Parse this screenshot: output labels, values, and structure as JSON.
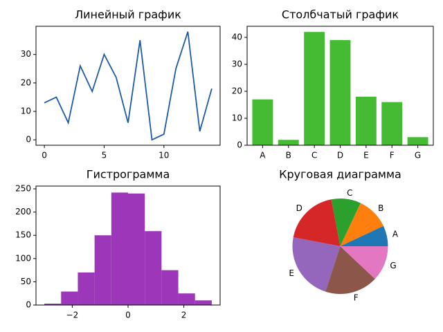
{
  "chart_data": [
    {
      "type": "line",
      "title": "Линейный график",
      "x": [
        0,
        1,
        2,
        3,
        4,
        5,
        6,
        7,
        8,
        9,
        10,
        11,
        12,
        13,
        14
      ],
      "values": [
        13,
        15,
        6,
        26,
        17,
        30,
        22,
        6,
        35,
        0,
        2,
        25,
        38,
        3,
        18
      ],
      "color": "#1c5aa8",
      "xlim": [
        -0.7,
        14.7
      ],
      "ylim": [
        -1.9,
        39.9
      ],
      "xticks": [
        0,
        5,
        10
      ],
      "yticks": [
        0,
        10,
        20,
        30
      ]
    },
    {
      "type": "bar",
      "title": "Столбчатый график",
      "categories": [
        "A",
        "B",
        "C",
        "D",
        "E",
        "F",
        "G"
      ],
      "values": [
        17,
        2,
        42,
        39,
        18,
        16,
        3
      ],
      "color": "#44bb33",
      "ylim": [
        0,
        44.1
      ],
      "yticks": [
        0,
        10,
        20,
        30,
        40
      ]
    },
    {
      "type": "histogram",
      "title": "Гистрограмма",
      "bins": [
        -3.0,
        -2.4,
        -1.8,
        -1.2,
        -0.6,
        0,
        0.6,
        1.2,
        1.8,
        2.4,
        3.0
      ],
      "values": [
        3,
        29,
        70,
        150,
        242,
        240,
        159,
        75,
        25,
        10
      ],
      "color": "#9b37b8",
      "xlim": [
        -3.3,
        3.3
      ],
      "ylim": [
        0,
        256
      ],
      "xticks": [
        {
          "value": -2,
          "label": "−2"
        },
        0,
        2
      ],
      "yticks": [
        0,
        50,
        100,
        150,
        200,
        250
      ]
    },
    {
      "type": "pie",
      "title": "Круговая диаграмма",
      "categories": [
        "A",
        "B",
        "C",
        "D",
        "E",
        "F",
        "G"
      ],
      "values": [
        7,
        11,
        10,
        19,
        23,
        18,
        12
      ],
      "colors": [
        "#1f77b4",
        "#ff7f0e",
        "#2ca02c",
        "#d62728",
        "#9467bd",
        "#8c564b",
        "#e377c2"
      ]
    }
  ]
}
